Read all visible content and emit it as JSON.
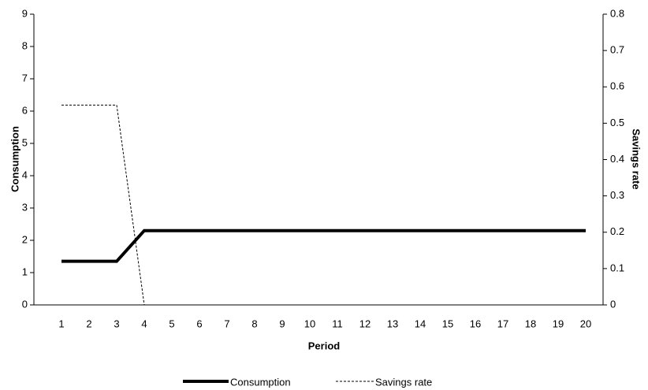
{
  "chart_data": {
    "type": "line",
    "categories": [
      "1",
      "2",
      "3",
      "4",
      "5",
      "6",
      "7",
      "8",
      "9",
      "10",
      "11",
      "12",
      "13",
      "14",
      "15",
      "16",
      "17",
      "18",
      "19",
      "20"
    ],
    "x_label": "Period",
    "y_label": "Consumption",
    "y2_label": "Savings rate",
    "series": [
      {
        "name": "Consumption",
        "color": "#000000",
        "dash": "solid",
        "values": [
          1.35,
          1.35,
          1.35,
          2.3,
          2.3,
          2.3,
          2.3,
          2.3,
          2.3,
          2.3,
          2.3,
          2.3,
          2.3,
          2.3,
          2.3,
          2.3,
          2.3,
          2.3,
          2.3,
          2.3
        ]
      },
      {
        "name": "Savings rate",
        "color": "#000000",
        "dash": "dashed",
        "axis": "y2",
        "values": [
          0.55,
          0.55,
          0.55,
          0,
          null,
          null,
          null,
          null,
          null,
          null,
          null,
          null,
          null,
          null,
          null,
          null,
          null,
          null,
          null,
          null
        ]
      }
    ],
    "ylim": [
      0,
      9
    ],
    "yticks": [
      0,
      1,
      2,
      3,
      4,
      5,
      6,
      7,
      8,
      9
    ],
    "y2lim": [
      0,
      0.8
    ],
    "y2ticks": [
      0,
      0.1,
      0.2,
      0.3,
      0.4,
      0.5,
      0.6,
      0.7,
      0.8
    ],
    "grid": false,
    "legend": "bottom"
  }
}
